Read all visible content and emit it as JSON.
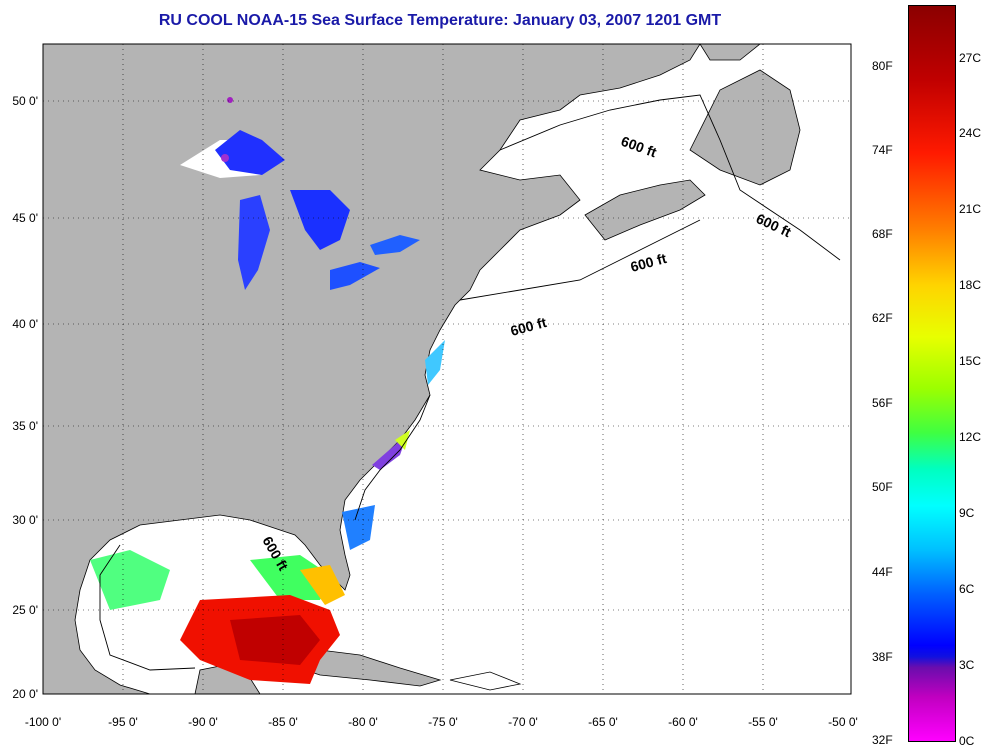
{
  "title": "RU COOL  NOAA-15  Sea Surface Temperature:  January 03, 2007 1201 GMT",
  "lat_labels": [
    "50 0'",
    "45 0'",
    "40 0'",
    "35 0'",
    "30 0'",
    "25 0'",
    "20 0'"
  ],
  "lon_labels": [
    "-100 0'",
    "-95 0'",
    "-90 0'",
    "-85 0'",
    "-80 0'",
    "-75 0'",
    "-70 0'",
    "-65 0'",
    "-60 0'",
    "-55 0'",
    "-50 0'"
  ],
  "contour_label": "600 ft",
  "colorbar": {
    "fahrenheit": [
      "80F",
      "74F",
      "68F",
      "62F",
      "56F",
      "50F",
      "44F",
      "38F",
      "32F"
    ],
    "celsius": [
      "27C",
      "24C",
      "21C",
      "18C",
      "15C",
      "12C",
      "9C",
      "6C",
      "3C",
      "0C"
    ]
  },
  "colors": {
    "land": "#b4b4b4",
    "ocean": "#ffffff",
    "title": "#1a1aa8"
  }
}
